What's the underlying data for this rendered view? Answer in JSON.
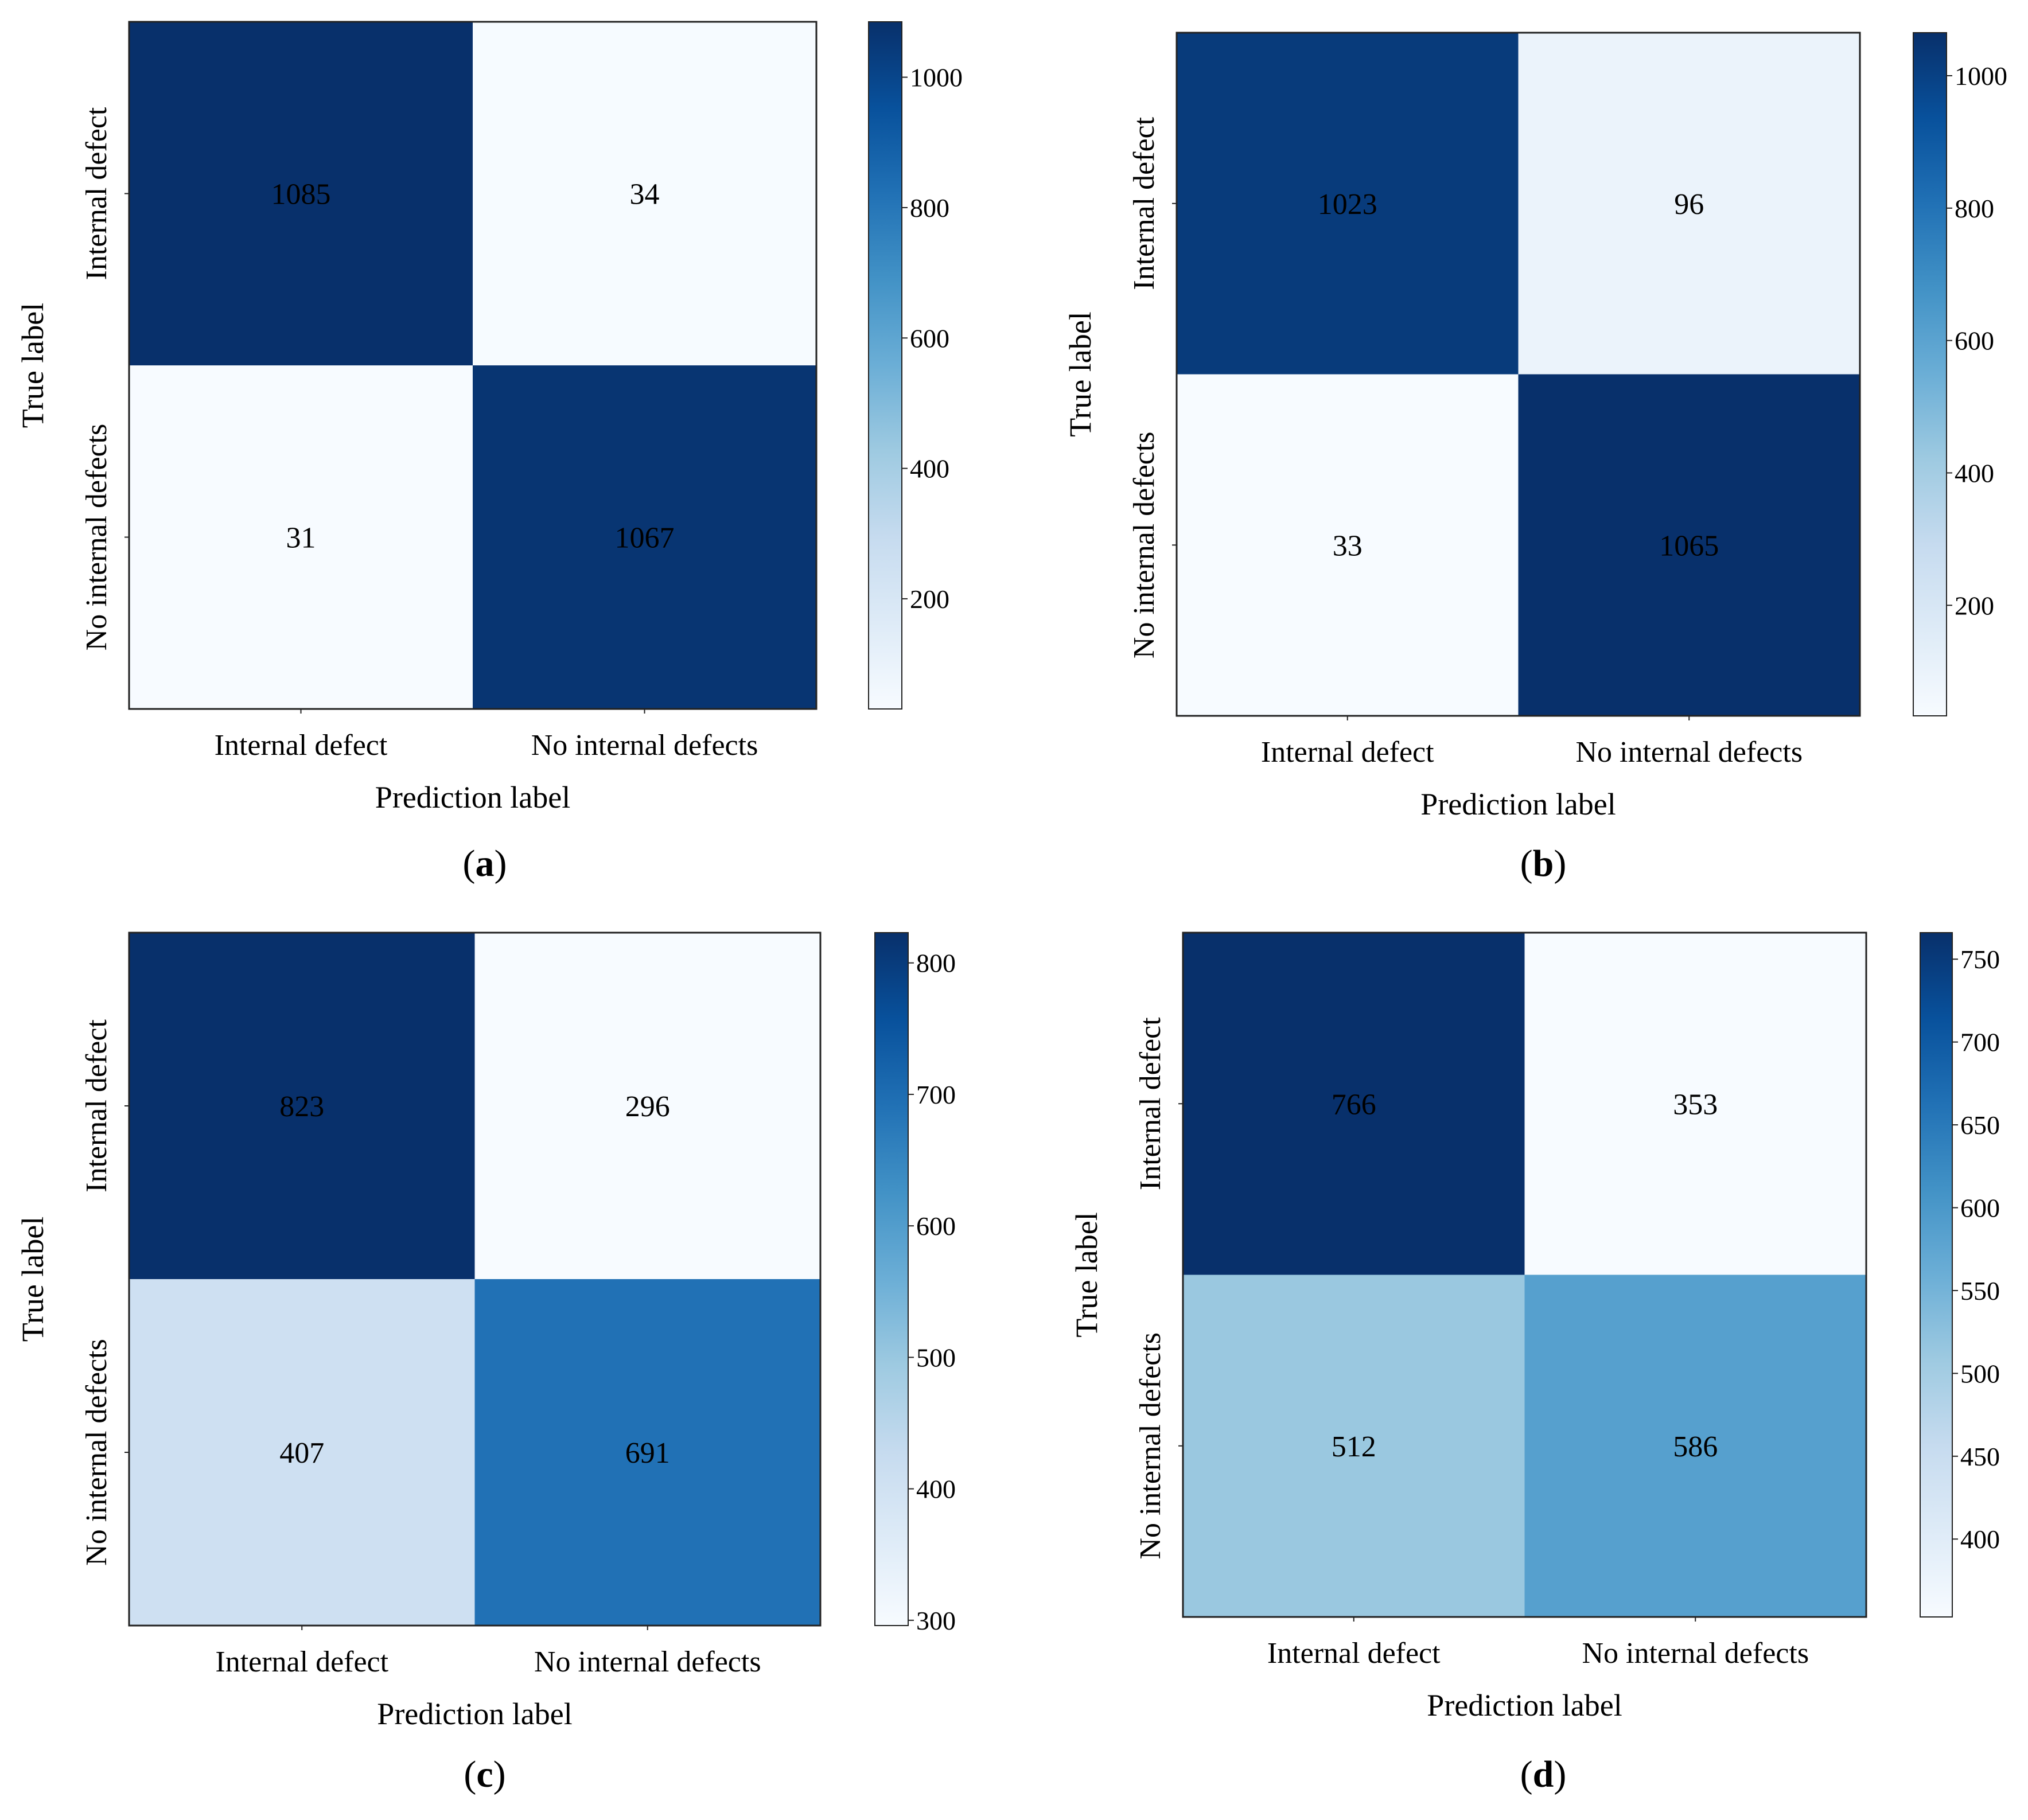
{
  "chart_data": [
    {
      "type": "heatmap",
      "panel_label": "a",
      "xlabel": "Prediction label",
      "ylabel": "True label",
      "x_categories": [
        "Internal defect",
        "No internal defects"
      ],
      "y_categories": [
        "Internal defect",
        "No internal defects"
      ],
      "values": [
        [
          1085,
          34
        ],
        [
          31,
          1067
        ]
      ],
      "colorbar": {
        "min": 31,
        "max": 1085,
        "ticks": [
          200,
          400,
          600,
          800,
          1000
        ]
      },
      "colormap": "Blues"
    },
    {
      "type": "heatmap",
      "panel_label": "b",
      "xlabel": "Prediction label",
      "ylabel": "True label",
      "x_categories": [
        "Internal defect",
        "No internal defects"
      ],
      "y_categories": [
        "Internal defect",
        "No internal defects"
      ],
      "values": [
        [
          1023,
          96
        ],
        [
          33,
          1065
        ]
      ],
      "colorbar": {
        "min": 33,
        "max": 1065,
        "ticks": [
          200,
          400,
          600,
          800,
          1000
        ]
      },
      "colormap": "Blues"
    },
    {
      "type": "heatmap",
      "panel_label": "c",
      "xlabel": "Prediction label",
      "ylabel": "True label",
      "x_categories": [
        "Internal defect",
        "No internal defects"
      ],
      "y_categories": [
        "Internal defect",
        "No internal defects"
      ],
      "values": [
        [
          823,
          296
        ],
        [
          407,
          691
        ]
      ],
      "colorbar": {
        "min": 296,
        "max": 823,
        "ticks": [
          300,
          400,
          500,
          600,
          700,
          800
        ]
      },
      "colormap": "Blues"
    },
    {
      "type": "heatmap",
      "panel_label": "d",
      "xlabel": "Prediction label",
      "ylabel": "True label",
      "x_categories": [
        "Internal defect",
        "No internal defects"
      ],
      "y_categories": [
        "Internal defect",
        "No internal defects"
      ],
      "values": [
        [
          766,
          353
        ],
        [
          512,
          586
        ]
      ],
      "colorbar": {
        "min": 353,
        "max": 766,
        "ticks": [
          400,
          450,
          500,
          550,
          600,
          650,
          700,
          750
        ]
      },
      "colormap": "Blues"
    }
  ]
}
